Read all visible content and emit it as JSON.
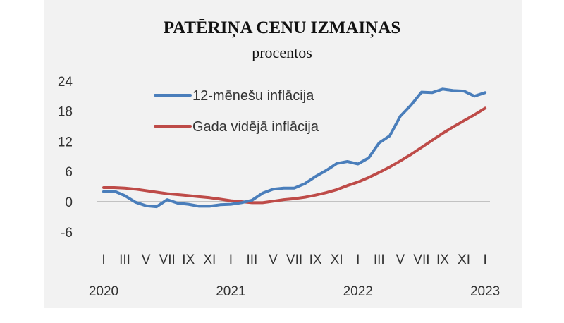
{
  "chart_data": {
    "type": "line",
    "title": "PATĒRIŅA CENU IZMAIŅAS",
    "subtitle": "procentos",
    "xlabel": "",
    "ylabel": "",
    "ylim": [
      -6,
      24
    ],
    "yticks": [
      "24",
      "18",
      "12",
      "6",
      "0",
      "-6"
    ],
    "ytick_values": [
      24,
      18,
      12,
      6,
      0,
      -6
    ],
    "grid": false,
    "legend_position": "top-left",
    "x_month_labels": [
      "I",
      "III",
      "V",
      "VII",
      "IX",
      "XI",
      "I",
      "III",
      "V",
      "VII",
      "IX",
      "XI",
      "I",
      "III",
      "V",
      "VII",
      "IX",
      "XI",
      "I"
    ],
    "x_year_labels": [
      "2020",
      "2021",
      "2022",
      "2023"
    ],
    "x": [
      "2020-01",
      "2020-02",
      "2020-03",
      "2020-04",
      "2020-05",
      "2020-06",
      "2020-07",
      "2020-08",
      "2020-09",
      "2020-10",
      "2020-11",
      "2020-12",
      "2021-01",
      "2021-02",
      "2021-03",
      "2021-04",
      "2021-05",
      "2021-06",
      "2021-07",
      "2021-08",
      "2021-09",
      "2021-10",
      "2021-11",
      "2021-12",
      "2022-01",
      "2022-02",
      "2022-03",
      "2022-04",
      "2022-05",
      "2022-06",
      "2022-07",
      "2022-08",
      "2022-09",
      "2022-10",
      "2022-11",
      "2022-12",
      "2023-01"
    ],
    "series": [
      {
        "name": "12-mēnešu inflācija",
        "color": "#4a7ebb",
        "values": [
          2.0,
          2.1,
          1.2,
          -0.1,
          -0.8,
          -1.0,
          0.4,
          -0.3,
          -0.5,
          -0.9,
          -0.9,
          -0.6,
          -0.5,
          -0.2,
          0.3,
          1.7,
          2.5,
          2.7,
          2.7,
          3.6,
          5.0,
          6.2,
          7.6,
          8.0,
          7.5,
          8.7,
          11.7,
          13.1,
          17.0,
          19.2,
          21.8,
          21.7,
          22.4,
          22.1,
          22.0,
          21.0,
          21.7
        ]
      },
      {
        "name": "Gada vidējā inflācija",
        "color": "#be4b48",
        "values": [
          2.8,
          2.8,
          2.7,
          2.5,
          2.2,
          1.9,
          1.6,
          1.4,
          1.2,
          1.0,
          0.8,
          0.5,
          0.2,
          0.0,
          -0.2,
          -0.2,
          0.1,
          0.4,
          0.6,
          0.9,
          1.3,
          1.8,
          2.4,
          3.2,
          3.9,
          4.8,
          5.8,
          6.9,
          8.1,
          9.4,
          10.8,
          12.2,
          13.6,
          14.9,
          16.1,
          17.3,
          18.6
        ]
      }
    ]
  },
  "colors": {
    "background": "#f2f2f2",
    "zero_line": "#a6a6a6"
  }
}
